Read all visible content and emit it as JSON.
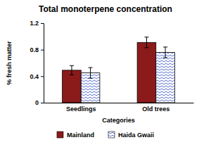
{
  "chart_data": {
    "type": "bar",
    "title": "Total monoterpene concentration",
    "x_label": "Categories",
    "y_label": "% fresh matter",
    "categories": [
      "Seedlings",
      "Old trees"
    ],
    "series": [
      {
        "name": "Mainland",
        "color": "#8b1a1a",
        "values": [
          0.49,
          0.91
        ],
        "errors": [
          0.07,
          0.08
        ]
      },
      {
        "name": "Haida Gwaii",
        "color": "#5a6fd0",
        "values": [
          0.45,
          0.76
        ],
        "errors": [
          0.08,
          0.08
        ]
      }
    ],
    "ylim": [
      0,
      1.2
    ],
    "yticks": [
      0,
      0.4,
      0.8,
      1.2
    ],
    "grid": false,
    "legend": "bottom"
  }
}
